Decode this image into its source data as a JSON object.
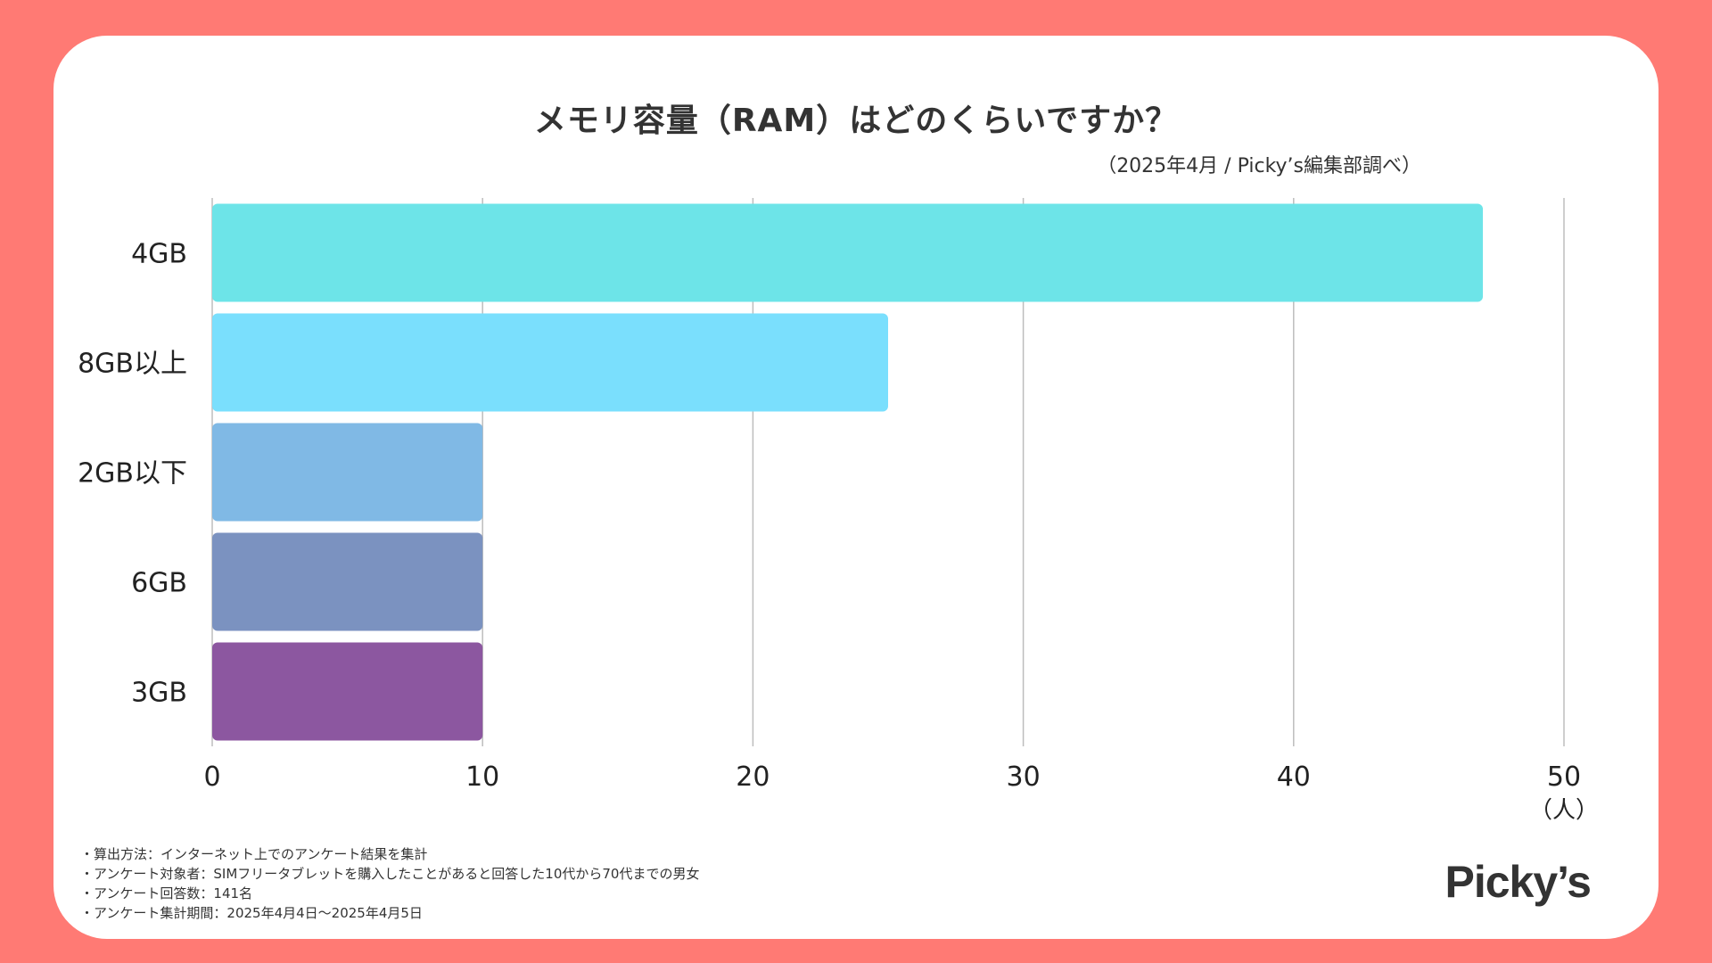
{
  "header": {
    "title": "メモリ容量（RAM）はどのくらいですか？",
    "source": "（2025年4月 / Picky’s編集部調べ）"
  },
  "chart_data": {
    "type": "bar",
    "orientation": "horizontal",
    "categories": [
      "4GB",
      "8GB以上",
      "2GB以下",
      "6GB",
      "3GB"
    ],
    "values": [
      47,
      25,
      10,
      10,
      10
    ],
    "colors": [
      "#6DE4E8",
      "#7ADFFD",
      "#80B9E5",
      "#7B92C0",
      "#8C57A0"
    ],
    "xticks": [
      "0",
      "10",
      "20",
      "30",
      "40",
      "50"
    ],
    "xlim": [
      0,
      50
    ],
    "unit": "（人）",
    "grid": true
  },
  "notes": [
    "・算出方法：インターネット上でのアンケート結果を集計",
    "・アンケート対象者：SIMフリータブレットを購入したことがあると回答した10代から70代までの男女",
    "・アンケート回答数：141名",
    "・アンケート集計期間：2025年4月4日〜2025年4月5日"
  ],
  "logo": {
    "text": "Picky’s"
  }
}
